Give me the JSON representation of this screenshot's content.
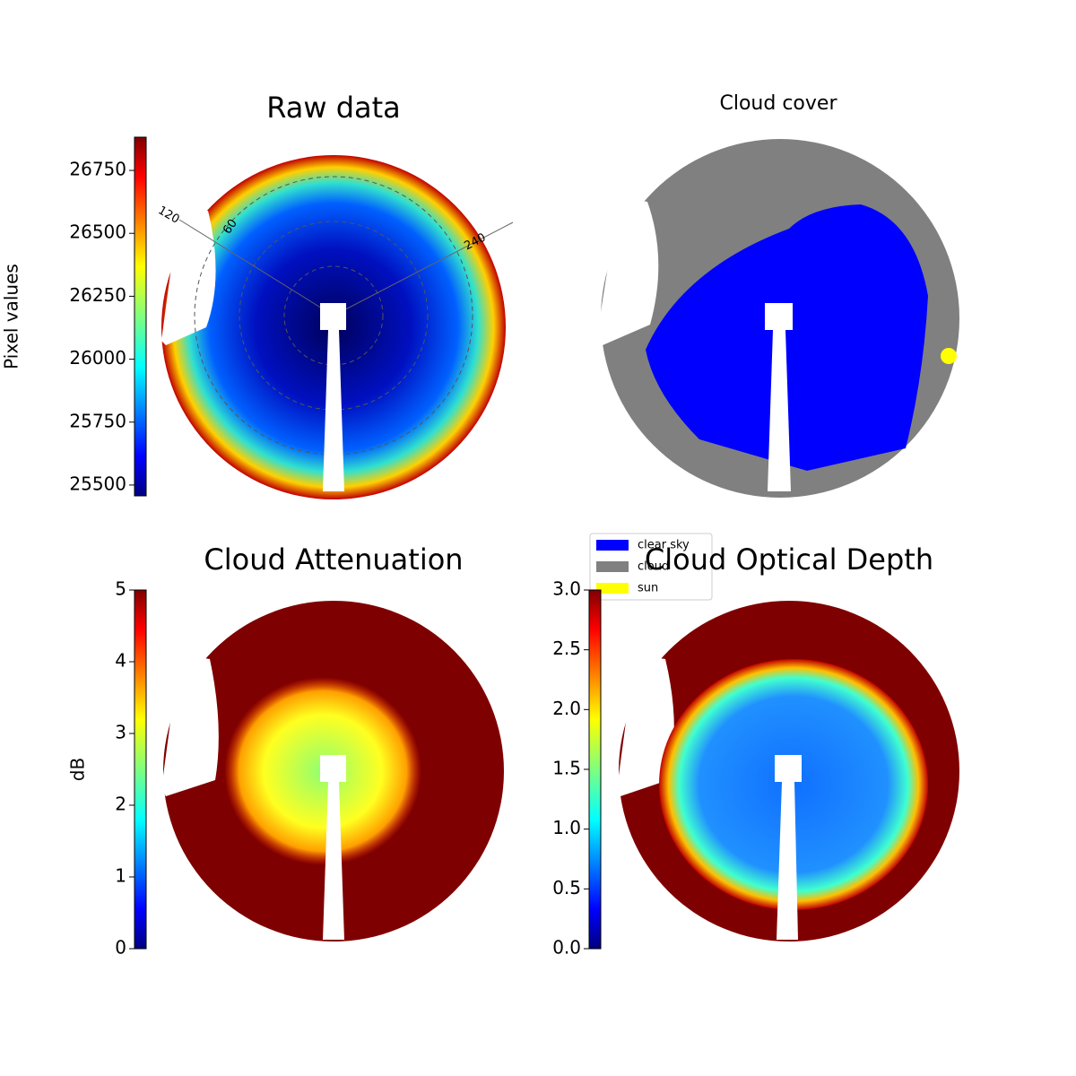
{
  "chart_data": [
    {
      "type": "image",
      "title": "Raw data",
      "colormap": "jet",
      "ylabel": "Pixel values",
      "ylim": [
        25457,
        26882
      ],
      "yticks": [
        25500,
        25750,
        26000,
        26250,
        26500,
        26750
      ],
      "annotations": [
        "120",
        "60",
        "240"
      ]
    },
    {
      "type": "image",
      "title": "Cloud cover",
      "series": [
        {
          "name": "clear sky",
          "color": "#0000ff"
        },
        {
          "name": "cloud",
          "color": "#808080"
        },
        {
          "name": "sun",
          "color": "#ffff00"
        }
      ]
    },
    {
      "type": "image",
      "title": "Cloud Attenuation",
      "colormap": "jet",
      "ylabel": "dB",
      "ylim": [
        0,
        5
      ],
      "yticks": [
        0,
        1,
        2,
        3,
        4,
        5
      ]
    },
    {
      "type": "image",
      "title": "Cloud Optical Depth",
      "colormap": "jet",
      "ylim": [
        0,
        3
      ],
      "yticks": [
        {
          "value": 0,
          "label": "0.0"
        },
        0.5,
        {
          "value": 1,
          "label": "1.0"
        },
        1.5,
        {
          "value": 2,
          "label": "2.0"
        },
        2.5,
        {
          "value": 3,
          "label": "3.0"
        }
      ]
    }
  ]
}
